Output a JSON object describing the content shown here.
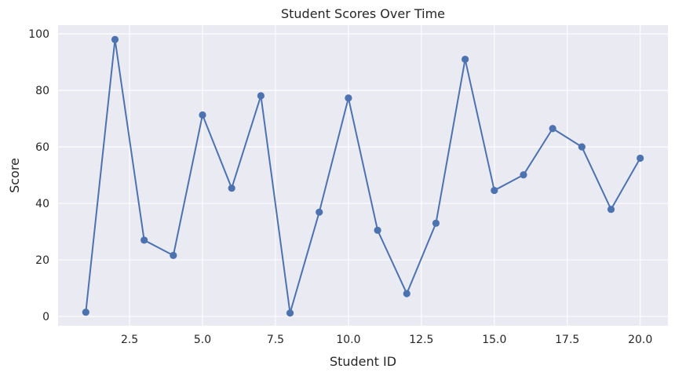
{
  "chart_data": {
    "type": "line",
    "title": "Student Scores Over Time",
    "xlabel": "Student ID",
    "ylabel": "Score",
    "xlim": [
      0.05,
      20.95
    ],
    "ylim": [
      -3.3,
      103.1
    ],
    "xticks": [
      2.5,
      5.0,
      7.5,
      10.0,
      12.5,
      15.0,
      17.5,
      20.0
    ],
    "xtick_labels": [
      "2.5",
      "5.0",
      "7.5",
      "10.0",
      "12.5",
      "15.0",
      "17.5",
      "20.0"
    ],
    "yticks": [
      0,
      20,
      40,
      60,
      80,
      100
    ],
    "ytick_labels": [
      "0",
      "20",
      "40",
      "60",
      "80",
      "100"
    ],
    "grid": true,
    "series": [
      {
        "color": "#4c72b0",
        "marker": "circle",
        "x": [
          1,
          2,
          3,
          4,
          5,
          6,
          7,
          8,
          9,
          10,
          11,
          12,
          13,
          14,
          15,
          16,
          17,
          18,
          19,
          20
        ],
        "y": [
          1.5,
          98.0,
          27.0,
          21.6,
          71.3,
          45.4,
          78.1,
          1.2,
          36.9,
          77.3,
          30.5,
          8.1,
          33.0,
          91.0,
          44.6,
          50.1,
          66.5,
          60.0,
          37.9,
          56.0
        ]
      }
    ]
  }
}
